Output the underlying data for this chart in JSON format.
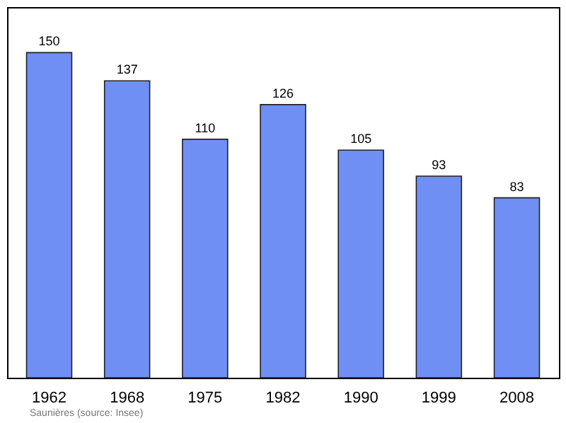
{
  "chart_data": {
    "type": "bar",
    "categories": [
      "1962",
      "1968",
      "1975",
      "1982",
      "1990",
      "1999",
      "2008"
    ],
    "values": [
      150,
      137,
      110,
      126,
      105,
      93,
      83
    ],
    "color": "#6f8ff5",
    "data_labels": true,
    "annotations": [
      "Saunières    (source: Insee)"
    ]
  }
}
